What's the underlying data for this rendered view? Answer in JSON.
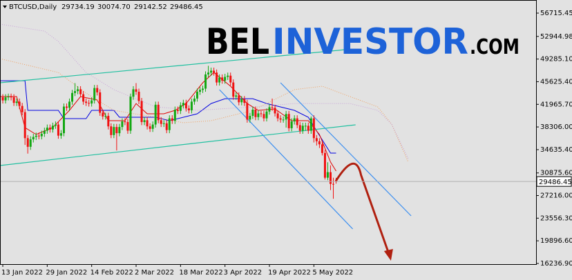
{
  "chart_data": {
    "type": "candlestick",
    "symbol": "BTCUSD,Daily",
    "header_labels": [
      "29734.19",
      "30074.70",
      "29142.52",
      "29486.45"
    ],
    "watermark": [
      "BEL",
      "INVESTOR",
      ".COM"
    ],
    "bull_color": "#12a812",
    "bear_color": "#f01010",
    "x": [
      "2022-01-13",
      "2022-01-14",
      "2022-01-15",
      "2022-01-16",
      "2022-01-17",
      "2022-01-18",
      "2022-01-19",
      "2022-01-20",
      "2022-01-21",
      "2022-01-22",
      "2022-01-23",
      "2022-01-24",
      "2022-01-25",
      "2022-01-26",
      "2022-01-27",
      "2022-01-28",
      "2022-01-29",
      "2022-01-30",
      "2022-01-31",
      "2022-02-01",
      "2022-02-02",
      "2022-02-03",
      "2022-02-04",
      "2022-02-05",
      "2022-02-06",
      "2022-02-07",
      "2022-02-08",
      "2022-02-09",
      "2022-02-10",
      "2022-02-11",
      "2022-02-12",
      "2022-02-13",
      "2022-02-14",
      "2022-02-15",
      "2022-02-16",
      "2022-02-17",
      "2022-02-18",
      "2022-02-19",
      "2022-02-20",
      "2022-02-21",
      "2022-02-22",
      "2022-02-23",
      "2022-02-24",
      "2022-02-25",
      "2022-02-26",
      "2022-02-27",
      "2022-02-28",
      "2022-03-01",
      "2022-03-02",
      "2022-03-03",
      "2022-03-04",
      "2022-03-05",
      "2022-03-06",
      "2022-03-07",
      "2022-03-08",
      "2022-03-09",
      "2022-03-10",
      "2022-03-11",
      "2022-03-12",
      "2022-03-13",
      "2022-03-14",
      "2022-03-15",
      "2022-03-16",
      "2022-03-17",
      "2022-03-18",
      "2022-03-19",
      "2022-03-20",
      "2022-03-21",
      "2022-03-22",
      "2022-03-23",
      "2022-03-24",
      "2022-03-25",
      "2022-03-26",
      "2022-03-27",
      "2022-03-28",
      "2022-03-29",
      "2022-03-30",
      "2022-03-31",
      "2022-04-01",
      "2022-04-02",
      "2022-04-03",
      "2022-04-04",
      "2022-04-05",
      "2022-04-06",
      "2022-04-07",
      "2022-04-08",
      "2022-04-09",
      "2022-04-10",
      "2022-04-11",
      "2022-04-12",
      "2022-04-13",
      "2022-04-14",
      "2022-04-15",
      "2022-04-16",
      "2022-04-17",
      "2022-04-18",
      "2022-04-19",
      "2022-04-20",
      "2022-04-21",
      "2022-04-22",
      "2022-04-23",
      "2022-04-24",
      "2022-04-25",
      "2022-04-26",
      "2022-04-27",
      "2022-04-28",
      "2022-04-29",
      "2022-04-30",
      "2022-05-01",
      "2022-05-02",
      "2022-05-03",
      "2022-05-04",
      "2022-05-05",
      "2022-05-06",
      "2022-05-07",
      "2022-05-08",
      "2022-05-09",
      "2022-05-10",
      "2022-05-11",
      "2022-05-12",
      "2022-05-13"
    ],
    "open": [
      43100,
      42600,
      43100,
      43200,
      43100,
      42200,
      42400,
      41700,
      40700,
      36500,
      35100,
      36300,
      36700,
      36900,
      36800,
      37200,
      37700,
      38200,
      37900,
      38500,
      38700,
      36900,
      37300,
      41600,
      41400,
      42400,
      43800,
      44100,
      44400,
      43600,
      42400,
      42200,
      42100,
      42600,
      44600,
      43900,
      40600,
      40000,
      40100,
      38400,
      37000,
      38300,
      37300,
      38300,
      39200,
      39100,
      37700,
      43200,
      44400,
      44000,
      42500,
      39100,
      39400,
      38400,
      38000,
      38700,
      41900,
      39400,
      38800,
      38900,
      37800,
      39700,
      39300,
      41100,
      40900,
      41800,
      42200,
      41300,
      41000,
      42400,
      42900,
      44000,
      44300,
      44500,
      46800,
      47100,
      47400,
      47100,
      45500,
      46300,
      45800,
      46400,
      46600,
      45500,
      43200,
      43400,
      42300,
      42800,
      42200,
      39500,
      40100,
      41100,
      39900,
      40500,
      40400,
      39700,
      40800,
      41500,
      41400,
      40500,
      39700,
      39500,
      39500,
      40400,
      38100,
      39200,
      39700,
      38600,
      37700,
      38500,
      38500,
      37700,
      39700,
      36500,
      36000,
      35500,
      34100,
      30100,
      31000,
      29100,
      29734.19
    ],
    "high": [
      43600,
      43600,
      43700,
      43700,
      43600,
      42900,
      42900,
      42200,
      41200,
      37000,
      36800,
      37200,
      37400,
      37400,
      37700,
      38200,
      38700,
      38700,
      39000,
      39200,
      39200,
      37800,
      42100,
      42100,
      42900,
      44300,
      45400,
      44900,
      44900,
      44100,
      42900,
      42700,
      43100,
      45100,
      45100,
      44400,
      41100,
      40600,
      40600,
      38900,
      38800,
      38800,
      38800,
      39700,
      39700,
      39600,
      43700,
      44900,
      45400,
      44500,
      43000,
      39900,
      39900,
      38900,
      39200,
      42400,
      42400,
      39900,
      39400,
      39400,
      40200,
      40200,
      41600,
      41600,
      42300,
      42700,
      42700,
      41800,
      42900,
      43400,
      44500,
      44800,
      45000,
      47300,
      48200,
      47900,
      47900,
      47600,
      46800,
      46800,
      46900,
      47100,
      47100,
      46000,
      43900,
      43900,
      43300,
      43300,
      42700,
      40600,
      41600,
      41600,
      41000,
      40900,
      40900,
      41300,
      42000,
      42900,
      41900,
      41000,
      40200,
      40000,
      40900,
      40900,
      39700,
      40200,
      40200,
      39100,
      39000,
      39000,
      39000,
      40000,
      40200,
      37000,
      36500,
      36000,
      34600,
      32600,
      32100,
      30100,
      30074.7
    ],
    "low": [
      42100,
      42100,
      42600,
      42600,
      41700,
      41700,
      41200,
      40200,
      35400,
      34000,
      34600,
      35800,
      36200,
      36300,
      36300,
      36700,
      37200,
      37400,
      37400,
      38000,
      36400,
      36400,
      36800,
      40900,
      40900,
      41900,
      43300,
      43600,
      43100,
      41900,
      41700,
      41600,
      41600,
      42100,
      43400,
      40100,
      39500,
      39500,
      37900,
      36500,
      36500,
      34500,
      36800,
      37800,
      38600,
      37200,
      37200,
      42700,
      43500,
      42000,
      38600,
      38600,
      37900,
      37500,
      37500,
      38200,
      38900,
      38300,
      38300,
      37300,
      37300,
      38800,
      38800,
      40400,
      40400,
      41300,
      40800,
      40500,
      40500,
      41900,
      42400,
      43500,
      43800,
      44000,
      46300,
      46600,
      46600,
      45000,
      45000,
      45300,
      45300,
      45900,
      45000,
      42700,
      42700,
      41800,
      41800,
      41700,
      39000,
      39000,
      39600,
      39400,
      39400,
      39900,
      39200,
      39200,
      40300,
      40900,
      40000,
      39200,
      39000,
      39000,
      38200,
      37600,
      37600,
      38700,
      38100,
      37200,
      37200,
      37700,
      37200,
      37200,
      35800,
      35300,
      34900,
      33700,
      29800,
      29700,
      28100,
      26700,
      29142.52
    ],
    "close": [
      42600,
      43100,
      43200,
      43100,
      42200,
      42400,
      41700,
      40700,
      36500,
      35100,
      36300,
      36700,
      36900,
      36800,
      37200,
      37700,
      38200,
      37900,
      38500,
      38700,
      36900,
      37300,
      41600,
      41400,
      42400,
      43800,
      44100,
      44400,
      43600,
      42400,
      42200,
      42100,
      42600,
      44600,
      43900,
      40600,
      40000,
      40100,
      38400,
      37000,
      38300,
      37300,
      38300,
      39200,
      39100,
      37700,
      43200,
      44400,
      44000,
      42500,
      39100,
      39400,
      38400,
      38000,
      38700,
      41900,
      39400,
      38800,
      38900,
      37800,
      39700,
      39300,
      41100,
      40900,
      41800,
      42200,
      41300,
      41000,
      42400,
      42900,
      44000,
      44300,
      44500,
      46800,
      47100,
      47400,
      47100,
      45500,
      46300,
      45800,
      46400,
      46600,
      45500,
      43200,
      43400,
      42300,
      42800,
      42200,
      39500,
      40100,
      41100,
      39900,
      40500,
      40400,
      39700,
      40800,
      41500,
      41400,
      40500,
      39700,
      39500,
      39500,
      40400,
      38100,
      39200,
      39700,
      38600,
      37700,
      38500,
      38500,
      37700,
      39700,
      36500,
      36000,
      35500,
      34100,
      30100,
      31000,
      29100,
      29000,
      29486.45
    ],
    "indicators": [
      {
        "color": "#0000e0",
        "x": [
          "2022-01-12",
          "2022-01-21",
          "2022-01-22",
          "2022-02-02",
          "2022-02-04",
          "2022-02-12",
          "2022-02-14",
          "2022-02-22",
          "2022-02-24",
          "2022-03-09",
          "2022-03-14",
          "2022-03-24",
          "2022-03-29",
          "2022-04-03",
          "2022-04-13",
          "2022-04-18",
          "2022-04-28",
          "2022-05-03",
          "2022-05-06",
          "2022-05-11",
          "2022-05-13"
        ],
        "values": [
          45780,
          45780,
          40990,
          40990,
          39650,
          39650,
          40990,
          40990,
          39880,
          39880,
          39320,
          40430,
          42100,
          42880,
          42880,
          42100,
          40990,
          39880,
          37650,
          34080,
          34080
        ]
      },
      {
        "color": "#e00000",
        "x": [
          "2022-01-12",
          "2022-01-18",
          "2022-01-21",
          "2022-01-25",
          "2022-01-31",
          "2022-02-06",
          "2022-02-10",
          "2022-02-16",
          "2022-02-20",
          "2022-02-26",
          "2022-03-02",
          "2022-03-06",
          "2022-03-12",
          "2022-03-16",
          "2022-03-20",
          "2022-03-26",
          "2022-03-30",
          "2022-04-05",
          "2022-04-11",
          "2022-04-15",
          "2022-04-21",
          "2022-04-27",
          "2022-05-03",
          "2022-05-07",
          "2022-05-11",
          "2022-05-13"
        ],
        "values": [
          43220,
          43220,
          38200,
          37090,
          38200,
          40990,
          43220,
          42660,
          39320,
          39320,
          42100,
          40430,
          40430,
          40990,
          42100,
          45450,
          47120,
          44890,
          42100,
          40990,
          41210,
          39320,
          39320,
          37090,
          32630,
          31180
        ]
      },
      {
        "color": "#f0a060",
        "dotted": true,
        "x": [
          "2022-01-12",
          "2022-02-02",
          "2022-02-12",
          "2022-02-22",
          "2022-03-09",
          "2022-03-19",
          "2022-03-29",
          "2022-04-13",
          "2022-04-28",
          "2022-05-08",
          "2022-05-18",
          "2022-05-28",
          "2022-06-02",
          "2022-06-08"
        ],
        "values": [
          49350,
          47120,
          43780,
          40990,
          39880,
          38980,
          39320,
          40990,
          44340,
          44890,
          43220,
          41550,
          38760,
          32630
        ]
      },
      {
        "color": "#c8a0d8",
        "dotted": true,
        "x": [
          "2022-01-12",
          "2022-01-28",
          "2022-02-02",
          "2022-02-12",
          "2022-02-22",
          "2022-03-09",
          "2022-03-24",
          "2022-04-13",
          "2022-04-28",
          "2022-05-08",
          "2022-05-18",
          "2022-05-28",
          "2022-06-02",
          "2022-06-08"
        ],
        "values": [
          54930,
          53810,
          52140,
          47120,
          44340,
          41550,
          40990,
          41550,
          42100,
          42100,
          42100,
          40990,
          38760,
          33180
        ]
      }
    ],
    "channels": [
      {
        "color": "#20c0a0",
        "x": [
          "2022-01-12",
          "2022-05-16"
        ],
        "values": [
          45450,
          50800
        ]
      },
      {
        "color": "#20c0a0",
        "x": [
          "2022-01-12",
          "2022-05-20"
        ],
        "values": [
          32070,
          38650
        ]
      },
      {
        "color": "#3a8ef0",
        "x": [
          "2022-04-23",
          "2022-06-09"
        ],
        "values": [
          45450,
          23930
        ]
      },
      {
        "color": "#3a8ef0",
        "x": [
          "2022-04-01",
          "2022-05-19"
        ],
        "values": [
          44340,
          21810
        ]
      }
    ],
    "forecast": {
      "color": "#b02010",
      "x": [
        "2022-05-13",
        "2022-05-20",
        "2022-06-01"
      ],
      "values": [
        29620,
        31850,
        16680
      ]
    },
    "xlim": [
      "2022-01-12",
      "2022-07-24"
    ],
    "xticks": [
      {
        "value": "2022-01-13",
        "label": "13 Jan 2022"
      },
      {
        "value": "2022-01-29",
        "label": "29 Jan 2022"
      },
      {
        "value": "2022-02-14",
        "label": "14 Feb 2022"
      },
      {
        "value": "2022-03-02",
        "label": "2 Mar 2022"
      },
      {
        "value": "2022-03-18",
        "label": "18 Mar 2022"
      },
      {
        "value": "2022-04-03",
        "label": "3 Apr 2022"
      },
      {
        "value": "2022-04-19",
        "label": "19 Apr 2022"
      },
      {
        "value": "2022-05-05",
        "label": "5 May 2022"
      }
    ],
    "ylim": [
      16125,
      58500
    ],
    "yticks": [
      56715.45,
      52944.98,
      {
        "value": 49285.1,
        "label": "49285.10"
      },
      {
        "value": 45625.4,
        "label": "45625.40"
      },
      {
        "value": 41965.7,
        "label": "41965.70"
      },
      {
        "value": 38306,
        "label": "38306.00"
      },
      {
        "value": 34635.4,
        "label": "34635.40"
      },
      {
        "value": 30875.6,
        "label": "30875.60"
      },
      {
        "value": 27216,
        "label": "27216.00"
      },
      {
        "value": 23556.3,
        "label": "23556.30"
      },
      {
        "value": 19896.6,
        "label": "19896.60"
      },
      {
        "value": 16236.9,
        "label": "16236.90"
      }
    ]
  }
}
